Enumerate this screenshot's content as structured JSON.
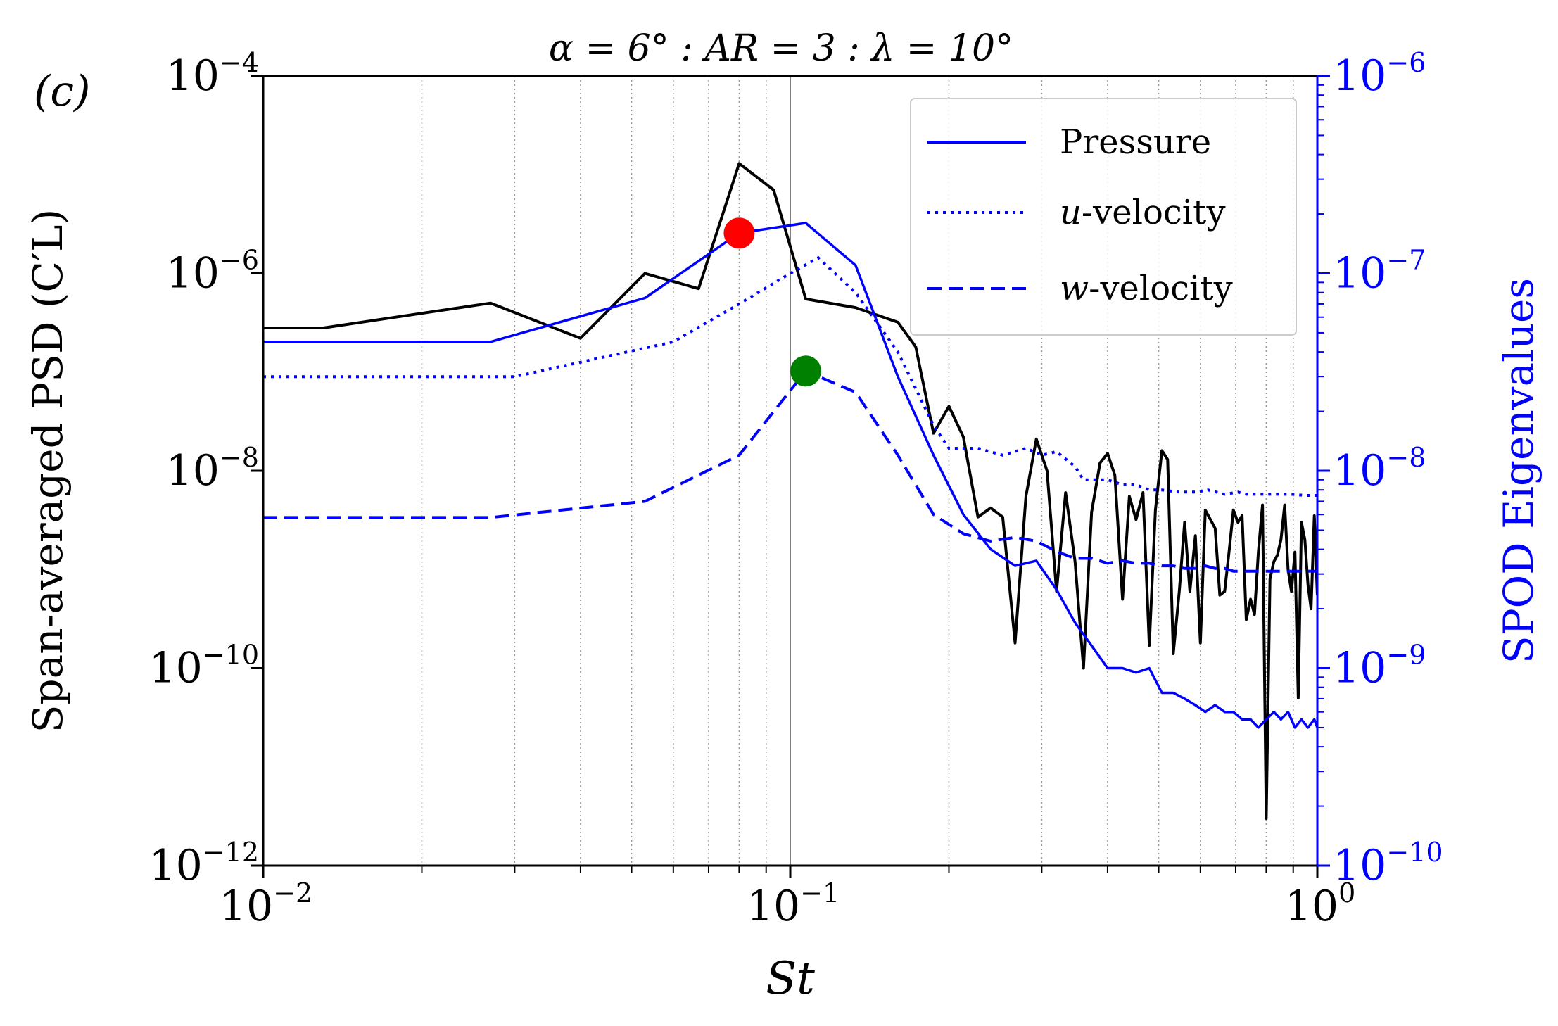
{
  "chart_data": {
    "type": "line",
    "panel_label": "(c)",
    "title": "α = 6° : AR = 3 : λ = 10°",
    "xlabel": "St",
    "ylabel_left": "Span-averaged PSD (C′L)",
    "ylabel_right": "SPOD Eigenvalues",
    "xscale": "log",
    "xlim": [
      0.01,
      1.0
    ],
    "ylim_left": [
      1e-12,
      0.0001
    ],
    "ylim_right": [
      1e-10,
      1e-06
    ],
    "x_tick_labels": [
      {
        "base": "10",
        "exp": "−2"
      },
      {
        "base": "10",
        "exp": "−1"
      },
      {
        "base": "10",
        "exp": "0"
      }
    ],
    "y_left_tick_labels": [
      {
        "base": "10",
        "exp": "−12"
      },
      {
        "base": "10",
        "exp": "−10"
      },
      {
        "base": "10",
        "exp": "−8"
      },
      {
        "base": "10",
        "exp": "−6"
      },
      {
        "base": "10",
        "exp": "−4"
      }
    ],
    "y_right_tick_labels": [
      {
        "base": "10",
        "exp": "−10"
      },
      {
        "base": "10",
        "exp": "−9"
      },
      {
        "base": "10",
        "exp": "−8"
      },
      {
        "base": "10",
        "exp": "−7"
      },
      {
        "base": "10",
        "exp": "−6"
      }
    ],
    "vertical_line_x": 0.1,
    "colors": {
      "psd": "#000000",
      "spod": "#0000ff",
      "red_marker": "#ff0000",
      "green_marker": "#008000",
      "grid": "#999999"
    },
    "psd_series": {
      "name": "PSD",
      "axis": "left",
      "x": [
        0.01,
        0.013,
        0.027,
        0.04,
        0.053,
        0.067,
        0.08,
        0.093,
        0.107,
        0.133,
        0.16,
        0.173,
        0.187,
        0.2,
        0.213,
        0.227,
        0.24,
        0.253,
        0.267,
        0.28,
        0.293,
        0.307,
        0.32,
        0.333,
        0.347,
        0.36,
        0.373,
        0.387,
        0.4,
        0.413,
        0.427,
        0.44,
        0.453,
        0.467,
        0.48,
        0.493,
        0.507,
        0.52,
        0.533,
        0.547,
        0.56,
        0.573,
        0.587,
        0.6,
        0.613,
        0.627,
        0.64,
        0.653,
        0.667,
        0.68,
        0.693,
        0.707,
        0.72,
        0.733,
        0.747,
        0.76,
        0.773,
        0.787,
        0.8,
        0.813,
        0.827,
        0.84,
        0.853,
        0.867,
        0.88,
        0.893,
        0.907,
        0.92,
        0.933,
        0.947,
        0.96,
        0.973,
        0.987,
        1.0
      ],
      "values": [
        2.8e-07,
        2.8e-07,
        5e-07,
        2.2e-07,
        1e-06,
        7e-07,
        1.3e-05,
        7e-06,
        5.5e-07,
        4.5e-07,
        3.2e-07,
        1.8e-07,
        2.4e-08,
        4.5e-08,
        2.2e-08,
        3.4e-09,
        4.2e-09,
        3.4e-09,
        1.8e-10,
        5.5e-09,
        2.1e-08,
        1e-08,
        6e-10,
        6e-09,
        1.2e-09,
        1e-10,
        3.8e-09,
        1.2e-08,
        1.5e-08,
        9e-09,
        5e-10,
        5.5e-09,
        3.2e-09,
        6e-09,
        1.7e-10,
        4e-09,
        1.6e-08,
        1.3e-08,
        1.4e-10,
        6e-10,
        3e-09,
        6e-10,
        2.2e-09,
        1.8e-10,
        4e-09,
        3.2e-09,
        2.6e-09,
        5.5e-10,
        6e-10,
        1.5e-09,
        4e-09,
        3e-09,
        3.5e-09,
        3.1e-10,
        5e-10,
        3.5e-10,
        1.5e-09,
        4.5e-09,
        3e-12,
        8e-10,
        1.2e-09,
        1.4e-09,
        2e-09,
        4.5e-09,
        1e-09,
        6e-10,
        1.5e-09,
        5e-11,
        3e-09,
        2e-09,
        7e-10,
        4e-10,
        3.5e-09,
        5.5e-10
      ]
    },
    "spod_series": [
      {
        "name": "Pressure",
        "axis": "right",
        "linestyle": "solid",
        "x": [
          0.01,
          0.027,
          0.053,
          0.08,
          0.107,
          0.133,
          0.16,
          0.187,
          0.213,
          0.24,
          0.267,
          0.293,
          0.32,
          0.347,
          0.373,
          0.4,
          0.427,
          0.453,
          0.48,
          0.507,
          0.533,
          0.56,
          0.587,
          0.613,
          0.64,
          0.667,
          0.693,
          0.72,
          0.747,
          0.773,
          0.8,
          0.827,
          0.853,
          0.88,
          0.907,
          0.933,
          0.96,
          0.987,
          1.0
        ],
        "values": [
          4.5e-08,
          4.5e-08,
          7.5e-08,
          1.6e-07,
          1.8e-07,
          1.1e-07,
          3e-08,
          1.2e-08,
          6e-09,
          4e-09,
          3.3e-09,
          3.5e-09,
          2.5e-09,
          1.7e-09,
          1.3e-09,
          1e-09,
          1e-09,
          9.5e-10,
          1e-09,
          7.5e-10,
          7.5e-10,
          7e-10,
          6.5e-10,
          6e-10,
          6.5e-10,
          6e-10,
          6e-10,
          5.5e-10,
          5.5e-10,
          5e-10,
          5.5e-10,
          6e-10,
          5.5e-10,
          6e-10,
          5e-10,
          5.5e-10,
          5e-10,
          5.5e-10,
          5e-10
        ]
      },
      {
        "name": "u-velocity",
        "axis": "right",
        "linestyle": "dotted",
        "x": [
          0.01,
          0.03,
          0.06,
          0.08,
          0.1,
          0.113,
          0.133,
          0.16,
          0.187,
          0.2,
          0.227,
          0.253,
          0.28,
          0.3,
          0.32,
          0.347,
          0.36,
          0.4,
          0.427,
          0.453,
          0.48,
          0.507,
          0.547,
          0.587,
          0.62,
          0.667,
          0.707,
          0.733,
          0.787,
          0.84,
          0.893,
          0.947,
          1.0
        ],
        "values": [
          3e-08,
          3e-08,
          4.5e-08,
          7e-08,
          1e-07,
          1.2e-07,
          8e-08,
          4e-08,
          1.7e-08,
          1.3e-08,
          1.3e-08,
          1.2e-08,
          1.3e-08,
          1.2e-08,
          1.25e-08,
          1.05e-08,
          9e-09,
          9e-09,
          8.5e-09,
          8.5e-09,
          8e-09,
          8e-09,
          7.8e-09,
          7.8e-09,
          8e-09,
          7.6e-09,
          7.8e-09,
          7.6e-09,
          7.6e-09,
          7.6e-09,
          7.6e-09,
          7.5e-09,
          7.5e-09
        ]
      },
      {
        "name": "w-velocity",
        "axis": "right",
        "linestyle": "dashed",
        "x": [
          0.01,
          0.027,
          0.053,
          0.08,
          0.107,
          0.133,
          0.16,
          0.187,
          0.213,
          0.24,
          0.267,
          0.293,
          0.32,
          0.347,
          0.373,
          0.4,
          0.427,
          0.453,
          0.48,
          0.507,
          0.533,
          0.56,
          0.587,
          0.613,
          0.64,
          0.667,
          0.693,
          0.72,
          0.747,
          0.773,
          0.8,
          0.827,
          0.853,
          0.88,
          0.907,
          0.933,
          0.96,
          0.987,
          1.0
        ],
        "values": [
          5.8e-09,
          5.8e-09,
          7e-09,
          1.2e-08,
          3.2e-08,
          2.5e-08,
          1.2e-08,
          6e-09,
          4.8e-09,
          4.4e-09,
          4.6e-09,
          4.4e-09,
          3.9e-09,
          3.6e-09,
          3.6e-09,
          3.4e-09,
          3.5e-09,
          3.4e-09,
          3.4e-09,
          3.3e-09,
          3.3e-09,
          3.2e-09,
          3.2e-09,
          3.3e-09,
          3.2e-09,
          3.2e-09,
          3.1e-09,
          3.1e-09,
          3.1e-09,
          3.1e-09,
          3.1e-09,
          3.1e-09,
          3.1e-09,
          3.1e-09,
          3.1e-09,
          3.1e-09,
          3.1e-09,
          3.1e-09,
          3.1e-09
        ]
      }
    ],
    "markers": [
      {
        "name": "red-marker",
        "axis": "right",
        "x": 0.08,
        "y": 1.6e-07,
        "color": "#ff0000"
      },
      {
        "name": "green-marker",
        "axis": "right",
        "x": 0.107,
        "y": 3.2e-08,
        "color": "#008000"
      }
    ],
    "legend": {
      "placement": "top-right",
      "entries": [
        {
          "label_italic": "",
          "label": "Pressure",
          "linestyle": "solid"
        },
        {
          "label_italic": "u",
          "label": "-velocity",
          "linestyle": "dotted"
        },
        {
          "label_italic": "w",
          "label": "-velocity",
          "linestyle": "dashed"
        }
      ]
    }
  }
}
